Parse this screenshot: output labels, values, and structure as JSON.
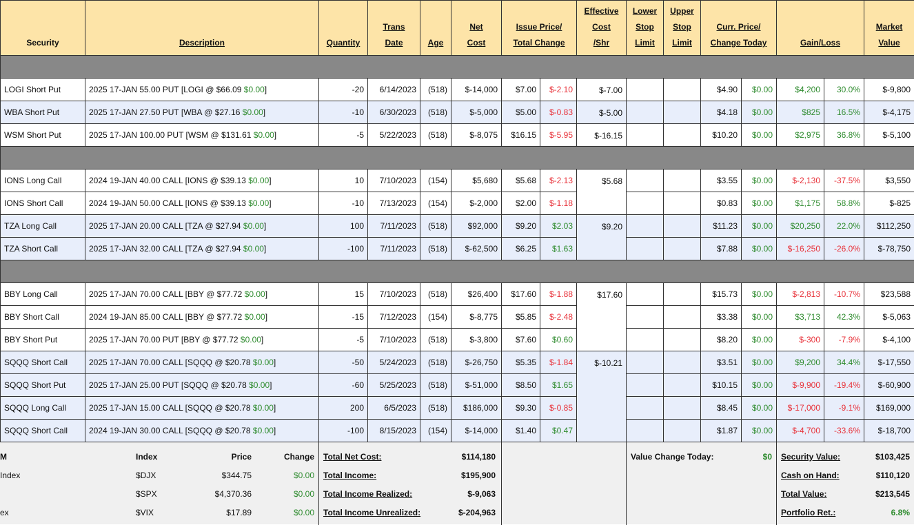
{
  "headers": {
    "security": "Security",
    "description": "Description",
    "quantity": "Quantity",
    "trans_date": [
      "Trans",
      "Date"
    ],
    "age": "Age",
    "net_cost": [
      "Net",
      "Cost"
    ],
    "issue_price": [
      "Issue Price/",
      "Total Change"
    ],
    "effective_cost": [
      "Effective",
      "Cost",
      "/Shr"
    ],
    "lower_stop": [
      "Lower",
      "Stop",
      "Limit"
    ],
    "upper_stop": [
      "Upper",
      "Stop",
      "Limit"
    ],
    "curr_price": [
      "Curr. Price/",
      "Change Today"
    ],
    "gain_loss": "Gain/Loss",
    "market_value": [
      "Market",
      "Value"
    ]
  },
  "colors": {
    "header_bg": "#fde4a8",
    "gain": "#2e8b2e",
    "loss": "#e8323a",
    "row_alt": "#e8eefb",
    "separator": "#888888"
  },
  "groups": [
    {
      "rows": [
        {
          "security": "LOGI Short Put",
          "desc": "2025 17-JAN 55.00 PUT [LOGI @ $66.09",
          "desc_chg": "$0.00",
          "desc_end": "]",
          "qty": "-20",
          "date": "6/14/2023",
          "age": "(518)",
          "net_cost": "$-14,000",
          "issue": "$7.00",
          "total_chg": "$-2.10",
          "total_chg_sign": "r",
          "eff": "$-7.00",
          "eff_span": 1,
          "curr": "$4.90",
          "chg_today": "$0.00",
          "gain": "$4,200",
          "gain_pct": "30.0%",
          "gain_sign": "g",
          "value": "$-9,800",
          "shade": "w"
        },
        {
          "security": "WBA Short Put",
          "desc": "2025 17-JAN 27.50 PUT [WBA @ $27.16",
          "desc_chg": "$0.00",
          "desc_end": "]",
          "qty": "-10",
          "date": "6/30/2023",
          "age": "(518)",
          "net_cost": "$-5,000",
          "issue": "$5.00",
          "total_chg": "$-0.83",
          "total_chg_sign": "r",
          "eff": "$-5.00",
          "eff_span": 1,
          "curr": "$4.18",
          "chg_today": "$0.00",
          "gain": "$825",
          "gain_pct": "16.5%",
          "gain_sign": "g",
          "value": "$-4,175",
          "shade": "b"
        },
        {
          "security": "WSM Short Put",
          "desc": "2025 17-JAN 100.00 PUT [WSM @ $131.61",
          "desc_chg": "$0.00",
          "desc_end": "]",
          "qty": "-5",
          "date": "5/22/2023",
          "age": "(518)",
          "net_cost": "$-8,075",
          "issue": "$16.15",
          "total_chg": "$-5.95",
          "total_chg_sign": "r",
          "eff": "$-16.15",
          "eff_span": 1,
          "curr": "$10.20",
          "chg_today": "$0.00",
          "gain": "$2,975",
          "gain_pct": "36.8%",
          "gain_sign": "g",
          "value": "$-5,100",
          "shade": "w"
        }
      ]
    },
    {
      "rows": [
        {
          "security": "IONS Long Call",
          "desc": "2024 19-JAN 40.00 CALL [IONS @ $39.13",
          "desc_chg": "$0.00",
          "desc_end": "]",
          "qty": "10",
          "date": "7/10/2023",
          "age": "(154)",
          "net_cost": "$5,680",
          "issue": "$5.68",
          "total_chg": "$-2.13",
          "total_chg_sign": "r",
          "eff": "$5.68",
          "eff_span": 2,
          "curr": "$3.55",
          "chg_today": "$0.00",
          "gain": "$-2,130",
          "gain_pct": "-37.5%",
          "gain_sign": "r",
          "value": "$3,550",
          "shade": "w"
        },
        {
          "security": "IONS Short Call",
          "desc": "2024 19-JAN 50.00 CALL [IONS @ $39.13",
          "desc_chg": "$0.00",
          "desc_end": "]",
          "qty": "-10",
          "date": "7/13/2023",
          "age": "(154)",
          "net_cost": "$-2,000",
          "issue": "$2.00",
          "total_chg": "$-1.18",
          "total_chg_sign": "r",
          "eff_span": 0,
          "curr": "$0.83",
          "chg_today": "$0.00",
          "gain": "$1,175",
          "gain_pct": "58.8%",
          "gain_sign": "g",
          "value": "$-825",
          "shade": "w"
        },
        {
          "security": "TZA Long Call",
          "desc": "2025 17-JAN 20.00 CALL [TZA @ $27.94",
          "desc_chg": "$0.00",
          "desc_end": "]",
          "qty": "100",
          "date": "7/11/2023",
          "age": "(518)",
          "net_cost": "$92,000",
          "issue": "$9.20",
          "total_chg": "$2.03",
          "total_chg_sign": "g",
          "eff": "$9.20",
          "eff_span": 2,
          "curr": "$11.23",
          "chg_today": "$0.00",
          "gain": "$20,250",
          "gain_pct": "22.0%",
          "gain_sign": "g",
          "value": "$112,250",
          "shade": "b"
        },
        {
          "security": "TZA Short Call",
          "desc": "2025 17-JAN 32.00 CALL [TZA @ $27.94",
          "desc_chg": "$0.00",
          "desc_end": "]",
          "qty": "-100",
          "date": "7/11/2023",
          "age": "(518)",
          "net_cost": "$-62,500",
          "issue": "$6.25",
          "total_chg": "$1.63",
          "total_chg_sign": "g",
          "eff_span": 0,
          "curr": "$7.88",
          "chg_today": "$0.00",
          "gain": "$-16,250",
          "gain_pct": "-26.0%",
          "gain_sign": "r",
          "value": "$-78,750",
          "shade": "b"
        }
      ]
    },
    {
      "rows": [
        {
          "security": "BBY Long Call",
          "desc": "2025 17-JAN 70.00 CALL [BBY @ $77.72",
          "desc_chg": "$0.00",
          "desc_end": "]",
          "qty": "15",
          "date": "7/10/2023",
          "age": "(518)",
          "net_cost": "$26,400",
          "issue": "$17.60",
          "total_chg": "$-1.88",
          "total_chg_sign": "r",
          "eff": "$17.60",
          "eff_span": 3,
          "curr": "$15.73",
          "chg_today": "$0.00",
          "gain": "$-2,813",
          "gain_pct": "-10.7%",
          "gain_sign": "r",
          "value": "$23,588",
          "shade": "w"
        },
        {
          "security": "BBY Short Call",
          "desc": "2024 19-JAN 85.00 CALL [BBY @ $77.72",
          "desc_chg": "$0.00",
          "desc_end": "]",
          "qty": "-15",
          "date": "7/12/2023",
          "age": "(154)",
          "net_cost": "$-8,775",
          "issue": "$5.85",
          "total_chg": "$-2.48",
          "total_chg_sign": "r",
          "eff_span": 0,
          "curr": "$3.38",
          "chg_today": "$0.00",
          "gain": "$3,713",
          "gain_pct": "42.3%",
          "gain_sign": "g",
          "value": "$-5,063",
          "shade": "w"
        },
        {
          "security": "BBY Short Put",
          "desc": "2025 17-JAN 70.00 PUT [BBY @ $77.72",
          "desc_chg": "$0.00",
          "desc_end": "]",
          "qty": "-5",
          "date": "7/10/2023",
          "age": "(518)",
          "net_cost": "$-3,800",
          "issue": "$7.60",
          "total_chg": "$0.60",
          "total_chg_sign": "g",
          "eff_span": 0,
          "curr": "$8.20",
          "chg_today": "$0.00",
          "gain": "$-300",
          "gain_pct": "-7.9%",
          "gain_sign": "r",
          "value": "$-4,100",
          "shade": "w"
        },
        {
          "security": "SQQQ Short Call",
          "desc": "2025 17-JAN 70.00 CALL [SQQQ @ $20.78",
          "desc_chg": "$0.00",
          "desc_end": "]",
          "qty": "-50",
          "date": "5/24/2023",
          "age": "(518)",
          "net_cost": "$-26,750",
          "issue": "$5.35",
          "total_chg": "$-1.84",
          "total_chg_sign": "r",
          "eff": "$-10.21",
          "eff_span": 4,
          "curr": "$3.51",
          "chg_today": "$0.00",
          "gain": "$9,200",
          "gain_pct": "34.4%",
          "gain_sign": "g",
          "value": "$-17,550",
          "shade": "b"
        },
        {
          "security": "SQQQ Short Put",
          "desc": "2025 17-JAN 25.00 PUT [SQQQ @ $20.78",
          "desc_chg": "$0.00",
          "desc_end": "]",
          "qty": "-60",
          "date": "5/25/2023",
          "age": "(518)",
          "net_cost": "$-51,000",
          "issue": "$8.50",
          "total_chg": "$1.65",
          "total_chg_sign": "g",
          "eff_span": 0,
          "curr": "$10.15",
          "chg_today": "$0.00",
          "gain": "$-9,900",
          "gain_pct": "-19.4%",
          "gain_sign": "r",
          "value": "$-60,900",
          "shade": "b"
        },
        {
          "security": "SQQQ Long Call",
          "desc": "2025 17-JAN 15.00 CALL [SQQQ @ $20.78",
          "desc_chg": "$0.00",
          "desc_end": "]",
          "qty": "200",
          "date": "6/5/2023",
          "age": "(518)",
          "net_cost": "$186,000",
          "issue": "$9.30",
          "total_chg": "$-0.85",
          "total_chg_sign": "r",
          "eff_span": 0,
          "curr": "$8.45",
          "chg_today": "$0.00",
          "gain": "$-17,000",
          "gain_pct": "-9.1%",
          "gain_sign": "r",
          "value": "$169,000",
          "shade": "b"
        },
        {
          "security": "SQQQ Short Call",
          "desc": "2024 19-JAN 30.00 CALL [SQQQ @ $20.78",
          "desc_chg": "$0.00",
          "desc_end": "]",
          "qty": "-100",
          "date": "8/15/2023",
          "age": "(154)",
          "net_cost": "$-14,000",
          "issue": "$1.40",
          "total_chg": "$0.47",
          "total_chg_sign": "g",
          "eff_span": 0,
          "curr": "$1.87",
          "chg_today": "$0.00",
          "gain": "$-4,700",
          "gain_pct": "-33.6%",
          "gain_sign": "r",
          "value": "$-18,700",
          "shade": "b"
        }
      ]
    }
  ],
  "footer": {
    "indices": {
      "header": {
        "name": "M",
        "index": "Index",
        "price": "Price",
        "change": "Change"
      },
      "rows": [
        {
          "name": "Index",
          "index": "$DJX",
          "price": "$344.75",
          "change": "$0.00"
        },
        {
          "name": "",
          "index": "$SPX",
          "price": "$4,370.36",
          "change": "$0.00"
        },
        {
          "name": "ex",
          "index": "$VIX",
          "price": "$17.89",
          "change": "$0.00"
        }
      ]
    },
    "totals": [
      {
        "label": "Total Net Cost:",
        "value": "$114,180"
      },
      {
        "label": "Total Income:",
        "value": "$195,900"
      },
      {
        "label": "Total Income Realized:",
        "value": "$-9,063"
      },
      {
        "label": "Total Income Unrealized:",
        "value": "$-204,963"
      }
    ],
    "value_change": {
      "label": "Value Change Today:",
      "value": "$0"
    },
    "summary": [
      {
        "label": "Security Value:",
        "value": "$103,425"
      },
      {
        "label": "Cash on Hand:",
        "value": "$110,120"
      },
      {
        "label": "Total Value:",
        "value": "$213,545"
      },
      {
        "label": "Portfolio Ret.:",
        "value": "6.8%",
        "sign": "g"
      }
    ]
  }
}
